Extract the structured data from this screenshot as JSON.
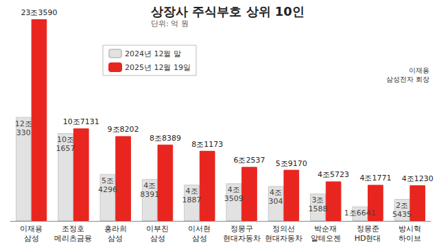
{
  "chart_data": {
    "type": "bar",
    "title": "상장사 주식부호 상위 10인",
    "subtitle": "단위: 억 원",
    "annotations": [
      "이재용\n삼성전자 회장"
    ],
    "categories": [
      "이재용\n삼성",
      "조정호\n메리츠금융",
      "홍라희\n삼성",
      "이부진\n삼성",
      "이서현\n삼성",
      "정몽구\n현대자동차",
      "정의선\n현대자동차",
      "박순재\n알테오젠",
      "정몽준\nHD현대",
      "방시혁\n하이브"
    ],
    "series": [
      {
        "name": "2024년 12월 말",
        "color": "#e2e2e2",
        "values": [
          120330,
          101657,
          54296,
          48391,
          41887,
          43509,
          40304,
          31588,
          16641,
          25435
        ],
        "value_labels": [
          "12조\n330",
          "10조\n1657",
          "5조\n4296",
          "4조\n8391",
          "4조\n1887",
          "4조\n3509",
          "4조\n304",
          "3조\n1588",
          "1조6641",
          "2조\n5435"
        ]
      },
      {
        "name": "2025년 12월 19일",
        "color": "#e8261f",
        "values": [
          233590,
          107131,
          98202,
          88389,
          81173,
          62537,
          59170,
          45723,
          41771,
          41230
        ],
        "value_labels": [
          "23조3590",
          "10조7131",
          "9조8202",
          "8조8389",
          "8조1173",
          "6조2537",
          "5조9170",
          "4조5723",
          "4조1771",
          "4조1230"
        ]
      }
    ],
    "ylim": [
      0,
      240000
    ],
    "yticks": [
      0,
      240000
    ],
    "grid": false,
    "legend": "upper left",
    "data_labels": true,
    "tick_labels": "x"
  }
}
